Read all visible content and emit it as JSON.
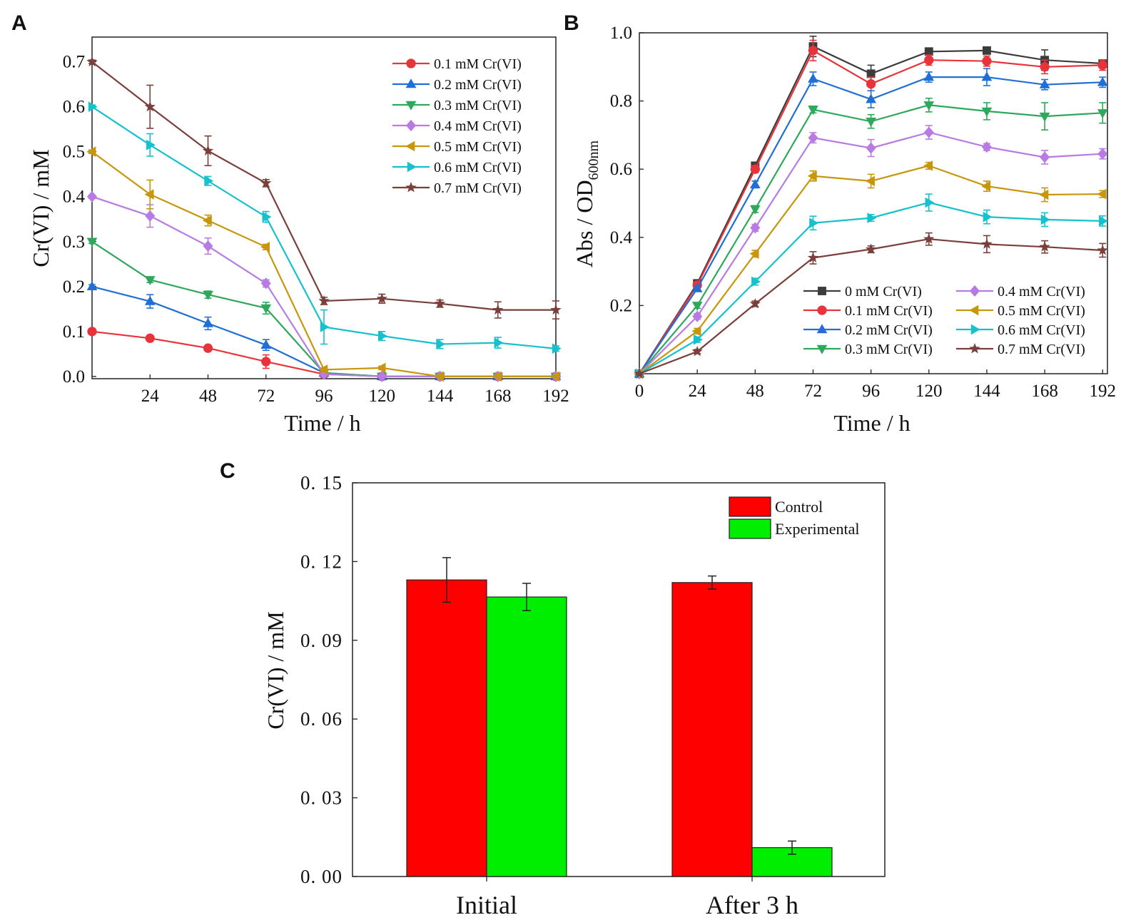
{
  "chart_data": [
    {
      "panel": "A",
      "type": "line",
      "title": "",
      "xlabel": "Time / h",
      "ylabel": "Cr(VI) / mM",
      "x": [
        0,
        24,
        48,
        72,
        96,
        120,
        144,
        168,
        192
      ],
      "x_ticks": [
        "24",
        "48",
        "72",
        "96",
        "120",
        "144",
        "168",
        "192"
      ],
      "y_ticks": [
        "0.0",
        "0.1",
        "0.2",
        "0.3",
        "0.4",
        "0.5",
        "0.6",
        "0.7"
      ],
      "xlim": [
        0,
        192
      ],
      "ylim": [
        -0.005,
        0.755
      ],
      "legend_position": "top-right",
      "series": [
        {
          "name": "0.1 mM Cr(VI)",
          "color": "#e8333a",
          "marker": "circle",
          "values": [
            0.1,
            0.085,
            0.063,
            0.033,
            0.005,
            0.0,
            0.0,
            0.0,
            0.0
          ],
          "errors": [
            0.004,
            0.004,
            0.005,
            0.015,
            0.003,
            0.002,
            0.002,
            0.002,
            0.002
          ]
        },
        {
          "name": "0.2 mM Cr(VI)",
          "color": "#1f6fd6",
          "marker": "triangle-up",
          "values": [
            0.2,
            0.167,
            0.118,
            0.07,
            0.008,
            0.0,
            0.0,
            0.0,
            0.0
          ],
          "errors": [
            0.004,
            0.015,
            0.014,
            0.012,
            0.003,
            0.002,
            0.002,
            0.002,
            0.002
          ]
        },
        {
          "name": "0.3 mM Cr(VI)",
          "color": "#2ea85a",
          "marker": "triangle-down",
          "values": [
            0.3,
            0.215,
            0.182,
            0.152,
            0.008,
            0.0,
            0.0,
            0.0,
            0.0
          ],
          "errors": [
            0.004,
            0.006,
            0.008,
            0.013,
            0.003,
            0.002,
            0.002,
            0.002,
            0.002
          ]
        },
        {
          "name": "0.4 mM Cr(VI)",
          "color": "#b77be3",
          "marker": "diamond",
          "values": [
            0.4,
            0.357,
            0.29,
            0.207,
            0.005,
            0.0,
            0.0,
            0.0,
            0.0
          ],
          "errors": [
            0.004,
            0.025,
            0.018,
            0.008,
            0.003,
            0.002,
            0.002,
            0.002,
            0.002
          ]
        },
        {
          "name": "0.5 mM Cr(VI)",
          "color": "#c8960c",
          "marker": "triangle-left",
          "values": [
            0.5,
            0.405,
            0.347,
            0.288,
            0.015,
            0.019,
            0.0,
            0.0,
            0.0
          ],
          "errors": [
            0.004,
            0.032,
            0.012,
            0.006,
            0.004,
            0.004,
            0.002,
            0.002,
            0.002
          ]
        },
        {
          "name": "0.6 mM Cr(VI)",
          "color": "#15c1cc",
          "marker": "triangle-right",
          "values": [
            0.6,
            0.515,
            0.435,
            0.355,
            0.11,
            0.09,
            0.072,
            0.075,
            0.062
          ],
          "errors": [
            0.004,
            0.025,
            0.01,
            0.012,
            0.038,
            0.01,
            0.01,
            0.012,
            0.006
          ]
        },
        {
          "name": "0.7 mM Cr(VI)",
          "color": "#7a3f3a",
          "marker": "star",
          "values": [
            0.7,
            0.6,
            0.502,
            0.43,
            0.168,
            0.173,
            0.162,
            0.148,
            0.148
          ],
          "errors": [
            0.004,
            0.048,
            0.033,
            0.008,
            0.008,
            0.01,
            0.008,
            0.018,
            0.02
          ]
        }
      ]
    },
    {
      "panel": "B",
      "type": "line",
      "title": "",
      "xlabel": "Time / h",
      "ylabel": "Abs / OD",
      "ylabel_subscript": "600nm",
      "x": [
        0,
        24,
        48,
        72,
        96,
        120,
        144,
        168,
        192
      ],
      "x_ticks": [
        "0",
        "24",
        "48",
        "72",
        "96",
        "120",
        "144",
        "168",
        "192"
      ],
      "y_ticks": [
        "0.2",
        "0.4",
        "0.6",
        "0.8",
        "1.0"
      ],
      "xlim": [
        0,
        194
      ],
      "ylim": [
        0.0,
        1.0
      ],
      "legend_position": "bottom-right",
      "series": [
        {
          "name": "0 mM Cr(VI)",
          "color": "#3c3c3c",
          "marker": "square",
          "values": [
            0.0,
            0.265,
            0.61,
            0.96,
            0.88,
            0.945,
            0.948,
            0.92,
            0.91
          ],
          "errors": [
            0.003,
            0.008,
            0.01,
            0.03,
            0.025,
            0.01,
            0.01,
            0.03,
            0.01
          ]
        },
        {
          "name": "0.1 mM Cr(VI)",
          "color": "#e8333a",
          "marker": "circle",
          "values": [
            0.0,
            0.26,
            0.6,
            0.948,
            0.85,
            0.92,
            0.917,
            0.9,
            0.905
          ],
          "errors": [
            0.003,
            0.008,
            0.01,
            0.03,
            0.02,
            0.015,
            0.015,
            0.02,
            0.015
          ]
        },
        {
          "name": "0.2 mM Cr(VI)",
          "color": "#1f6fd6",
          "marker": "triangle-up",
          "values": [
            0.0,
            0.25,
            0.555,
            0.865,
            0.805,
            0.87,
            0.87,
            0.848,
            0.855
          ],
          "errors": [
            0.003,
            0.008,
            0.01,
            0.02,
            0.025,
            0.015,
            0.025,
            0.015,
            0.015
          ]
        },
        {
          "name": "0.3 mM Cr(VI)",
          "color": "#2ea85a",
          "marker": "triangle-down",
          "values": [
            0.0,
            0.2,
            0.483,
            0.775,
            0.74,
            0.788,
            0.77,
            0.755,
            0.765
          ],
          "errors": [
            0.003,
            0.008,
            0.01,
            0.01,
            0.02,
            0.02,
            0.025,
            0.04,
            0.03
          ]
        },
        {
          "name": "0.4 mM Cr(VI)",
          "color": "#b77be3",
          "marker": "diamond",
          "values": [
            0.0,
            0.168,
            0.428,
            0.692,
            0.662,
            0.708,
            0.665,
            0.635,
            0.645
          ],
          "errors": [
            0.003,
            0.008,
            0.01,
            0.015,
            0.025,
            0.02,
            0.01,
            0.02,
            0.015
          ]
        },
        {
          "name": "0.5 mM Cr(VI)",
          "color": "#c8960c",
          "marker": "triangle-left",
          "values": [
            0.0,
            0.125,
            0.352,
            0.58,
            0.565,
            0.61,
            0.55,
            0.525,
            0.527
          ],
          "errors": [
            0.003,
            0.008,
            0.01,
            0.015,
            0.02,
            0.01,
            0.015,
            0.02,
            0.01
          ]
        },
        {
          "name": "0.6 mM Cr(VI)",
          "color": "#15c1cc",
          "marker": "triangle-right",
          "values": [
            0.0,
            0.1,
            0.27,
            0.442,
            0.457,
            0.502,
            0.46,
            0.452,
            0.448
          ],
          "errors": [
            0.003,
            0.008,
            0.01,
            0.02,
            0.01,
            0.025,
            0.02,
            0.02,
            0.015
          ]
        },
        {
          "name": "0.7 mM Cr(VI)",
          "color": "#7a3f3a",
          "marker": "star",
          "values": [
            0.0,
            0.065,
            0.205,
            0.34,
            0.365,
            0.395,
            0.38,
            0.372,
            0.362
          ],
          "errors": [
            0.003,
            0.006,
            0.008,
            0.018,
            0.01,
            0.018,
            0.025,
            0.018,
            0.02
          ]
        }
      ]
    },
    {
      "panel": "C",
      "type": "bar",
      "title": "",
      "xlabel": "",
      "ylabel": "Cr(VI) / mM",
      "categories": [
        "Initial",
        "After 3 h"
      ],
      "y_ticks": [
        "0. 00",
        "0. 03",
        "0. 06",
        "0. 09",
        "0. 12",
        "0. 15"
      ],
      "ylim": [
        0.0,
        0.15
      ],
      "legend_position": "top-right",
      "series": [
        {
          "name": "Control",
          "color": "#ff0000",
          "values": [
            0.113,
            0.112
          ],
          "errors": [
            0.0085,
            0.0025
          ]
        },
        {
          "name": "Experimental",
          "color": "#00ee00",
          "values": [
            0.1065,
            0.011
          ],
          "errors": [
            0.0052,
            0.0025
          ]
        }
      ]
    }
  ],
  "labels": {
    "panelA": "A",
    "panelB": "B",
    "panelC": "C"
  }
}
